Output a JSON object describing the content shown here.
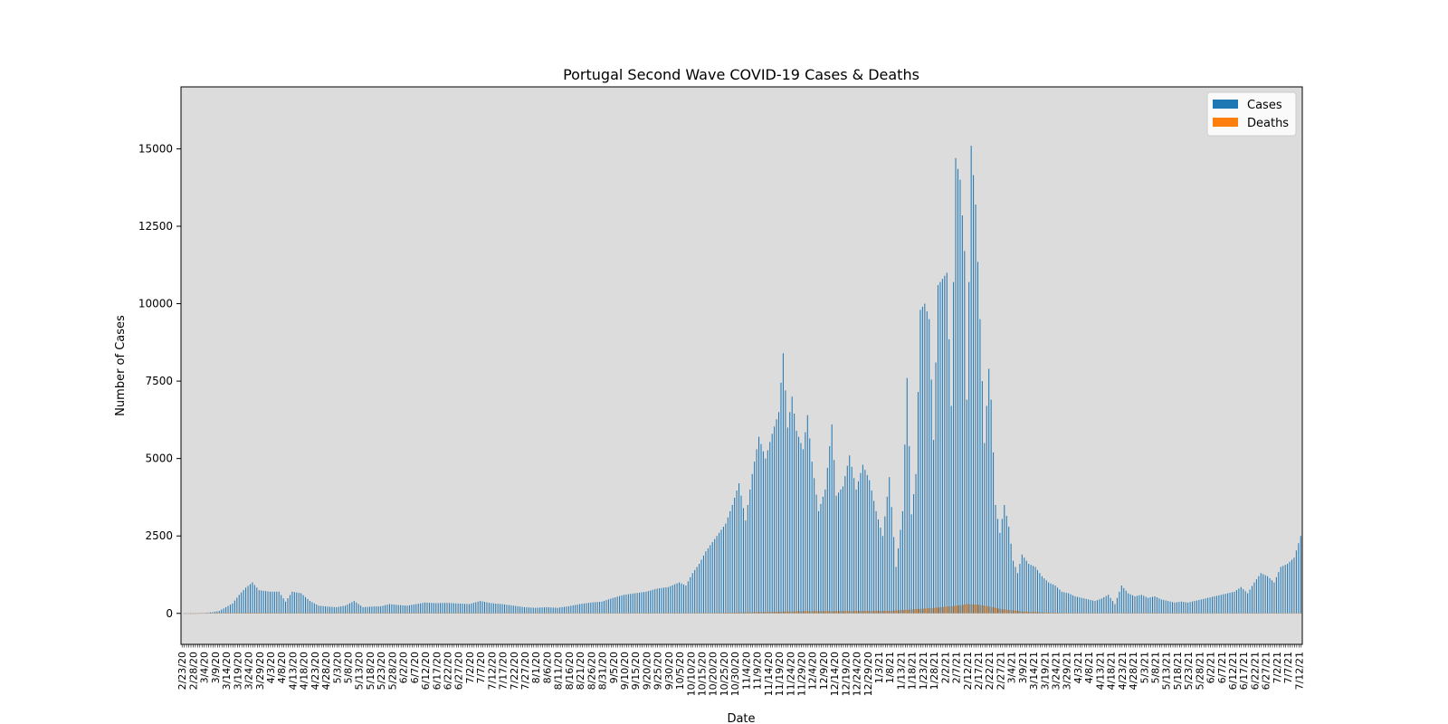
{
  "chart_data": {
    "type": "bar",
    "title": "Portugal Second Wave COVID-19 Cases & Deaths",
    "xlabel": "Date",
    "ylabel": "Number of Cases",
    "ylim": [
      -1000,
      17000
    ],
    "yticks": [
      0,
      2500,
      5000,
      7500,
      10000,
      12500,
      15000
    ],
    "grid": false,
    "legend_position": "top-right",
    "start_date": "2020-02-23",
    "end_date": "2021-07-13",
    "label_every_days": 5,
    "colors": {
      "cases": "#1f77b4",
      "deaths": "#ff7f0e",
      "plot_bg": "#dcdcdc"
    },
    "series": [
      {
        "name": "Cases",
        "color": "#1f77b4",
        "values": [
          [
            0,
            0
          ],
          [
            6,
            2
          ],
          [
            10,
            8
          ],
          [
            14,
            40
          ],
          [
            17,
            80
          ],
          [
            20,
            200
          ],
          [
            23,
            320
          ],
          [
            26,
            600
          ],
          [
            29,
            830
          ],
          [
            32,
            1000
          ],
          [
            35,
            750
          ],
          [
            40,
            700
          ],
          [
            44,
            700
          ],
          [
            47,
            380
          ],
          [
            50,
            700
          ],
          [
            54,
            650
          ],
          [
            58,
            400
          ],
          [
            62,
            250
          ],
          [
            66,
            220
          ],
          [
            70,
            200
          ],
          [
            74,
            250
          ],
          [
            78,
            400
          ],
          [
            82,
            200
          ],
          [
            86,
            220
          ],
          [
            90,
            230
          ],
          [
            94,
            300
          ],
          [
            98,
            270
          ],
          [
            102,
            250
          ],
          [
            106,
            300
          ],
          [
            110,
            350
          ],
          [
            115,
            330
          ],
          [
            120,
            340
          ],
          [
            125,
            320
          ],
          [
            130,
            300
          ],
          [
            135,
            400
          ],
          [
            140,
            330
          ],
          [
            145,
            300
          ],
          [
            150,
            250
          ],
          [
            155,
            200
          ],
          [
            160,
            180
          ],
          [
            165,
            200
          ],
          [
            170,
            180
          ],
          [
            175,
            230
          ],
          [
            180,
            300
          ],
          [
            185,
            350
          ],
          [
            190,
            380
          ],
          [
            195,
            500
          ],
          [
            200,
            600
          ],
          [
            205,
            650
          ],
          [
            210,
            700
          ],
          [
            215,
            800
          ],
          [
            220,
            850
          ],
          [
            225,
            1000
          ],
          [
            228,
            900
          ],
          [
            231,
            1300
          ],
          [
            234,
            1600
          ],
          [
            237,
            2000
          ],
          [
            240,
            2300
          ],
          [
            243,
            2600
          ],
          [
            246,
            2900
          ],
          [
            249,
            3500
          ],
          [
            252,
            4200
          ],
          [
            255,
            3000
          ],
          [
            258,
            4500
          ],
          [
            261,
            5700
          ],
          [
            264,
            5000
          ],
          [
            267,
            5800
          ],
          [
            270,
            6500
          ],
          [
            272,
            8400
          ],
          [
            274,
            6000
          ],
          [
            276,
            7000
          ],
          [
            278,
            5900
          ],
          [
            281,
            5300
          ],
          [
            283,
            6400
          ],
          [
            285,
            4900
          ],
          [
            288,
            3300
          ],
          [
            291,
            4000
          ],
          [
            294,
            6100
          ],
          [
            296,
            3800
          ],
          [
            299,
            4100
          ],
          [
            302,
            5100
          ],
          [
            305,
            4000
          ],
          [
            308,
            4800
          ],
          [
            311,
            4300
          ],
          [
            314,
            3300
          ],
          [
            317,
            2500
          ],
          [
            320,
            4400
          ],
          [
            323,
            1500
          ],
          [
            326,
            3300
          ],
          [
            328,
            7600
          ],
          [
            330,
            3200
          ],
          [
            332,
            4500
          ],
          [
            334,
            9800
          ],
          [
            336,
            10000
          ],
          [
            338,
            9500
          ],
          [
            340,
            5600
          ],
          [
            342,
            10600
          ],
          [
            344,
            10800
          ],
          [
            346,
            11000
          ],
          [
            348,
            6700
          ],
          [
            350,
            14700
          ],
          [
            352,
            14000
          ],
          [
            354,
            11700
          ],
          [
            355,
            6900
          ],
          [
            356,
            10700
          ],
          [
            357,
            15100
          ],
          [
            359,
            13200
          ],
          [
            361,
            9500
          ],
          [
            363,
            5500
          ],
          [
            365,
            7900
          ],
          [
            366,
            6900
          ],
          [
            368,
            3500
          ],
          [
            370,
            2600
          ],
          [
            372,
            3500
          ],
          [
            374,
            2800
          ],
          [
            376,
            1700
          ],
          [
            378,
            1300
          ],
          [
            380,
            1900
          ],
          [
            383,
            1600
          ],
          [
            386,
            1500
          ],
          [
            389,
            1200
          ],
          [
            392,
            1000
          ],
          [
            395,
            900
          ],
          [
            398,
            700
          ],
          [
            401,
            650
          ],
          [
            404,
            550
          ],
          [
            407,
            500
          ],
          [
            410,
            450
          ],
          [
            413,
            400
          ],
          [
            416,
            480
          ],
          [
            419,
            600
          ],
          [
            422,
            300
          ],
          [
            425,
            900
          ],
          [
            428,
            650
          ],
          [
            431,
            550
          ],
          [
            434,
            600
          ],
          [
            437,
            500
          ],
          [
            440,
            550
          ],
          [
            443,
            450
          ],
          [
            446,
            400
          ],
          [
            449,
            350
          ],
          [
            452,
            380
          ],
          [
            455,
            350
          ],
          [
            458,
            400
          ],
          [
            461,
            450
          ],
          [
            464,
            500
          ],
          [
            467,
            550
          ],
          [
            470,
            600
          ],
          [
            473,
            650
          ],
          [
            476,
            700
          ],
          [
            479,
            850
          ],
          [
            482,
            650
          ],
          [
            485,
            1000
          ],
          [
            488,
            1300
          ],
          [
            491,
            1200
          ],
          [
            494,
            1000
          ],
          [
            497,
            1500
          ],
          [
            500,
            1600
          ],
          [
            503,
            1800
          ],
          [
            506,
            2500
          ],
          [
            509,
            2200
          ],
          [
            511,
            3200
          ],
          [
            513,
            3300
          ],
          [
            515,
            3100
          ],
          [
            518,
            1800
          ]
        ]
      },
      {
        "name": "Deaths",
        "color": "#ff7f0e",
        "values": [
          [
            0,
            0
          ],
          [
            30,
            20
          ],
          [
            60,
            10
          ],
          [
            90,
            10
          ],
          [
            150,
            5
          ],
          [
            200,
            5
          ],
          [
            240,
            15
          ],
          [
            260,
            40
          ],
          [
            280,
            70
          ],
          [
            300,
            75
          ],
          [
            320,
            80
          ],
          [
            330,
            130
          ],
          [
            340,
            180
          ],
          [
            350,
            250
          ],
          [
            355,
            300
          ],
          [
            360,
            280
          ],
          [
            365,
            220
          ],
          [
            370,
            140
          ],
          [
            380,
            60
          ],
          [
            390,
            30
          ],
          [
            400,
            15
          ],
          [
            450,
            5
          ],
          [
            518,
            5
          ]
        ]
      }
    ]
  }
}
